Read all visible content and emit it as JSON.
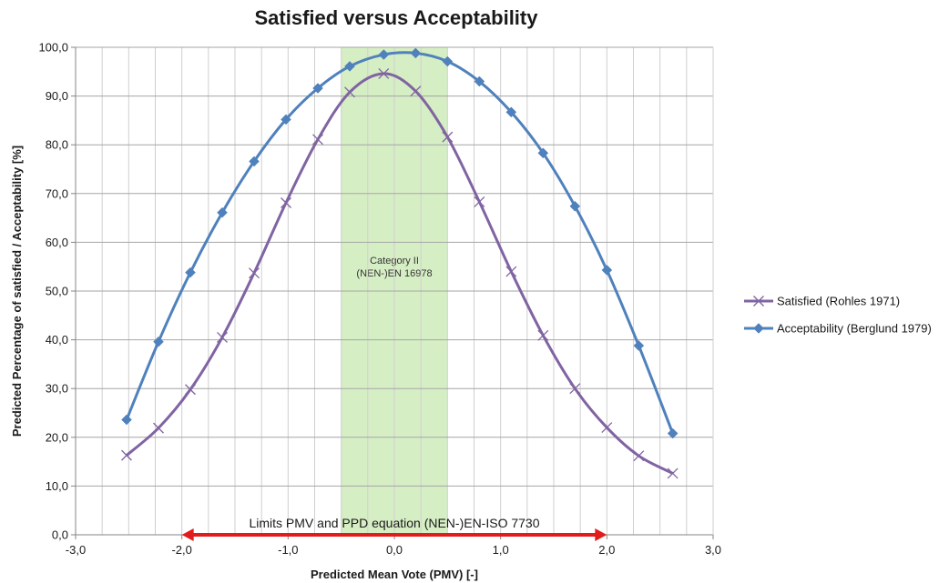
{
  "chart_data": {
    "type": "line",
    "title": "Satisfied versus Acceptability",
    "xlabel": "Predicted Mean Vote (PMV) [-]",
    "ylabel": "Predicted Percentage of satisfied / Acceptability [%]",
    "xlim": [
      -3.0,
      3.0
    ],
    "ylim": [
      0.0,
      100.0
    ],
    "x_ticks": [
      -3.0,
      -2.0,
      -1.0,
      0.0,
      1.0,
      2.0,
      3.0
    ],
    "x_tick_labels": [
      "-3,0",
      "-2,0",
      "-1,0",
      "0,0",
      "1,0",
      "2,0",
      "3,0"
    ],
    "y_ticks": [
      0,
      10,
      20,
      30,
      40,
      50,
      60,
      70,
      80,
      90,
      100
    ],
    "y_tick_labels": [
      "0,0",
      "10,0",
      "20,0",
      "30,0",
      "40,0",
      "50,0",
      "60,0",
      "70,0",
      "80,0",
      "90,0",
      "100,0"
    ],
    "x_minor_step": 0.25,
    "grid": true,
    "legend_position": "right",
    "series": [
      {
        "name": "Satisfied (Rohles 1971)",
        "marker": "x",
        "color": "#8064a2",
        "points": [
          [
            -2.52,
            16.3
          ],
          [
            -2.22,
            21.9
          ],
          [
            -1.92,
            29.8
          ],
          [
            -1.62,
            40.5
          ],
          [
            -1.32,
            53.7
          ],
          [
            -1.02,
            68.1
          ],
          [
            -0.72,
            81.1
          ],
          [
            -0.42,
            90.8
          ],
          [
            -0.1,
            94.6
          ],
          [
            0.2,
            91.0
          ],
          [
            0.5,
            81.6
          ],
          [
            0.8,
            68.3
          ],
          [
            1.1,
            54.0
          ],
          [
            1.4,
            40.9
          ],
          [
            1.7,
            30.0
          ],
          [
            2.0,
            22.0
          ],
          [
            2.3,
            16.2
          ],
          [
            2.62,
            12.6
          ]
        ]
      },
      {
        "name": "Acceptability (Berglund 1979)",
        "marker": "diamond",
        "color": "#4f81bd",
        "points": [
          [
            -2.52,
            23.6
          ],
          [
            -2.22,
            39.6
          ],
          [
            -1.92,
            53.8
          ],
          [
            -1.62,
            66.1
          ],
          [
            -1.32,
            76.6
          ],
          [
            -1.02,
            85.2
          ],
          [
            -0.72,
            91.6
          ],
          [
            -0.42,
            96.1
          ],
          [
            -0.1,
            98.5
          ],
          [
            0.2,
            98.8
          ],
          [
            0.5,
            97.1
          ],
          [
            0.8,
            93.0
          ],
          [
            1.1,
            86.7
          ],
          [
            1.4,
            78.3
          ],
          [
            1.7,
            67.4
          ],
          [
            2.0,
            54.3
          ],
          [
            2.3,
            38.8
          ],
          [
            2.62,
            20.8
          ]
        ]
      }
    ],
    "band": {
      "x_range": [
        -0.5,
        0.5
      ],
      "color": "#d6eec4",
      "label_line1": "Category II",
      "label_line2": "(NEN-)EN 16978"
    },
    "limits_arrow": {
      "x_range": [
        -2.0,
        2.0
      ],
      "y_value": 0,
      "color": "#e31b1b",
      "label": "Limits PMV and PPD equation (NEN-)EN-ISO 7730"
    }
  }
}
